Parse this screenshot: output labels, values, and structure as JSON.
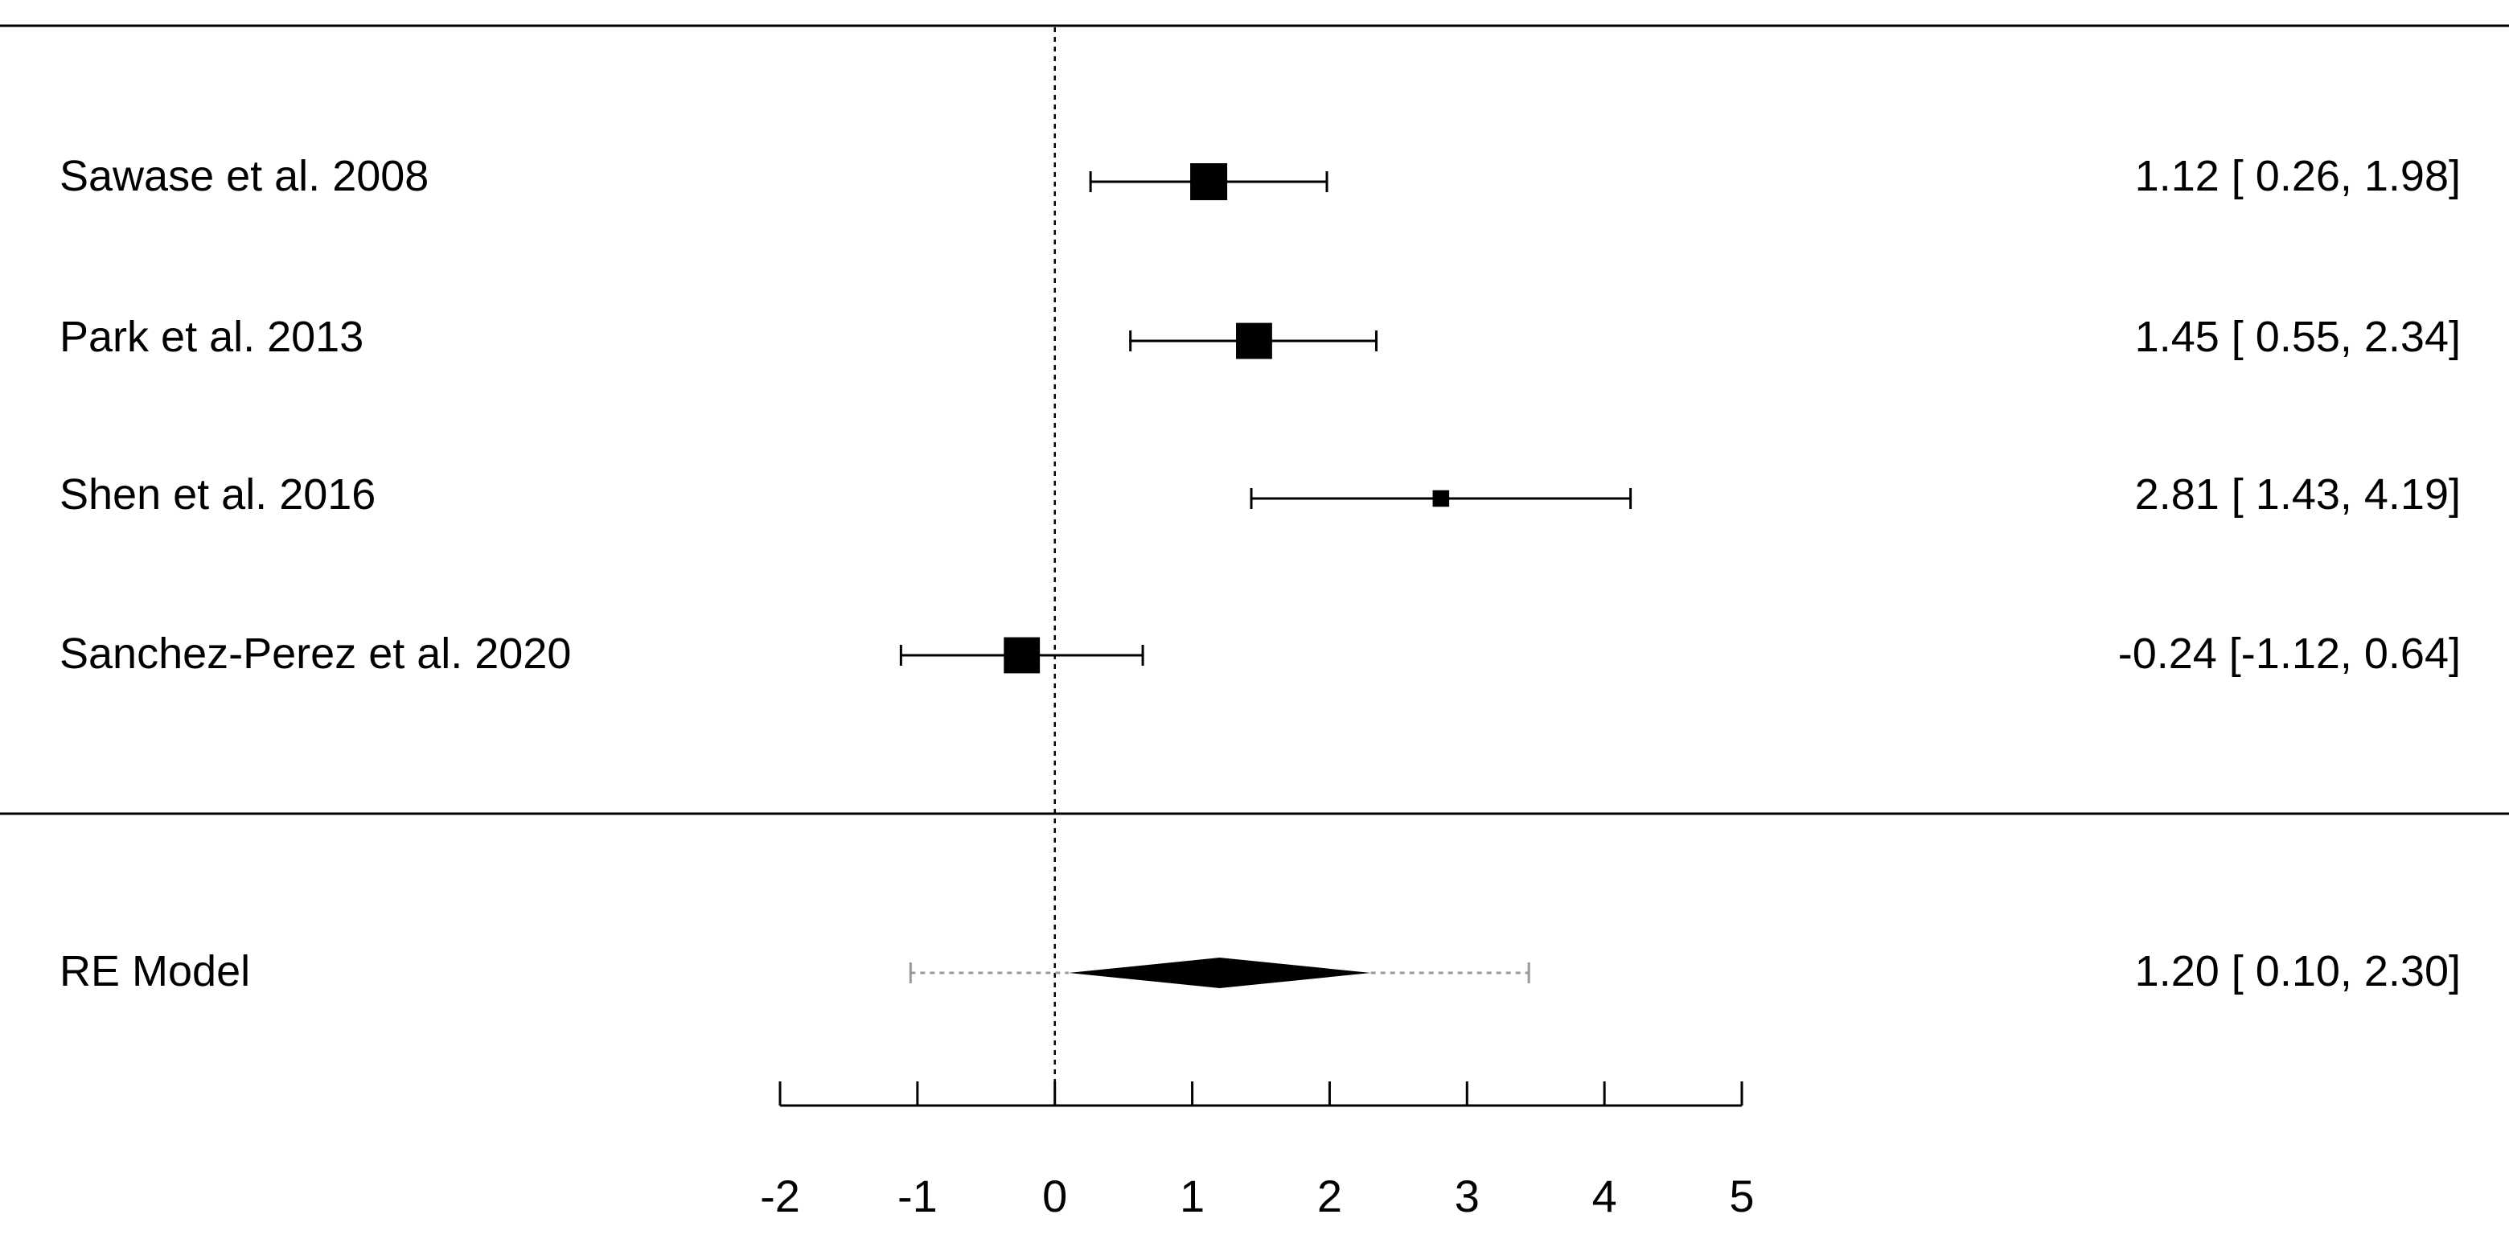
{
  "chart_data": {
    "type": "forest",
    "title": "",
    "xlabel": "",
    "ylabel": "",
    "xlim": [
      -2,
      5
    ],
    "x_ticks": [
      "-2",
      "-1",
      "0",
      "1",
      "2",
      "3",
      "4",
      "5"
    ],
    "x_tick_values": [
      -2,
      -1,
      0,
      1,
      2,
      3,
      4,
      5
    ],
    "reference_line": 0,
    "studies": [
      {
        "label": "Sawase et al. 2008",
        "estimate": 1.12,
        "ci_lower": 0.26,
        "ci_upper": 1.98,
        "weight": 1.0,
        "text": "1.12 [ 0.26, 1.98]"
      },
      {
        "label": "Park et al. 2013",
        "estimate": 1.45,
        "ci_lower": 0.55,
        "ci_upper": 2.34,
        "weight": 0.95,
        "text": "1.45 [ 0.55, 2.34]"
      },
      {
        "label": "Shen et al. 2016",
        "estimate": 2.81,
        "ci_lower": 1.43,
        "ci_upper": 4.19,
        "weight": 0.2,
        "text": "2.81 [ 1.43, 4.19]"
      },
      {
        "label": "Sanchez-Perez et al. 2020",
        "estimate": -0.24,
        "ci_lower": -1.12,
        "ci_upper": 0.64,
        "weight": 0.95,
        "text": "-0.24 [-1.12, 0.64]"
      }
    ],
    "summary": {
      "label": "RE Model",
      "estimate": 1.2,
      "ci_lower": 0.1,
      "ci_upper": 2.3,
      "pi_lower": -1.05,
      "pi_upper": 3.45,
      "text": "1.20 [ 0.10, 2.30]"
    }
  }
}
